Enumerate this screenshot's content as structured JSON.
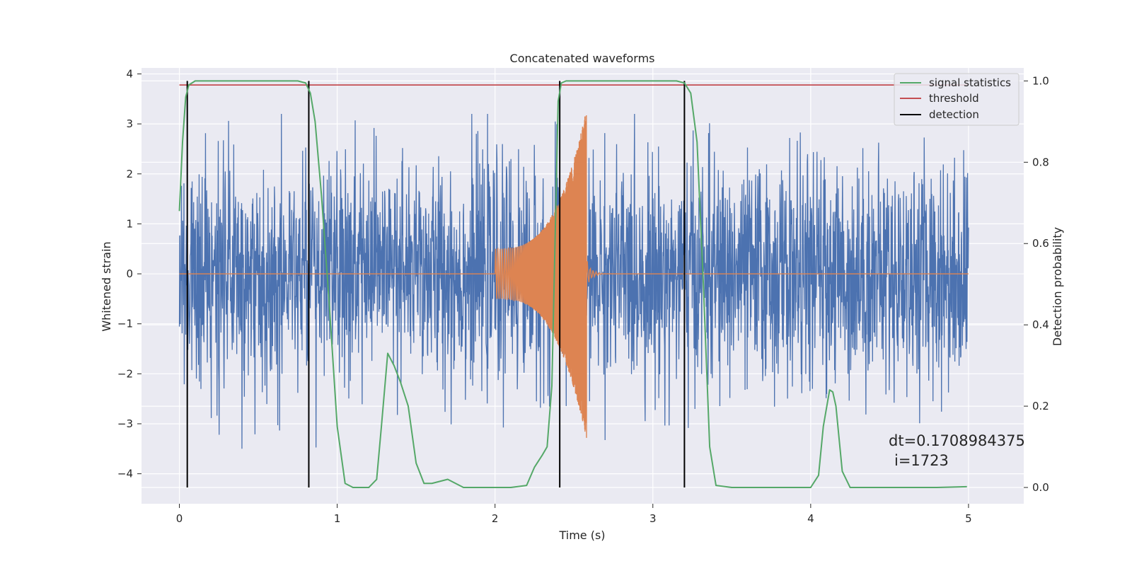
{
  "chart_data": {
    "type": "line",
    "title": "Concatenated waveforms",
    "xlabel": "Time (s)",
    "ylabel_left": "Whitened strain",
    "ylabel_right": "Detection probability",
    "xlim": [
      -0.24,
      5.35
    ],
    "ylim_left": [
      -4.6,
      4.12
    ],
    "ylim_right": [
      -0.04,
      1.032
    ],
    "x_ticks": [
      0,
      1,
      2,
      3,
      4,
      5
    ],
    "x_tick_labels": [
      "0",
      "1",
      "2",
      "3",
      "4",
      "5"
    ],
    "y_left_ticks": [
      -4,
      -3,
      -2,
      -1,
      0,
      1,
      2,
      3,
      4
    ],
    "y_left_tick_labels": [
      "−4",
      "−3",
      "−2",
      "−1",
      "0",
      "1",
      "2",
      "3",
      "4"
    ],
    "y_right_ticks": [
      0.0,
      0.2,
      0.4,
      0.6,
      0.8,
      1.0
    ],
    "y_right_tick_labels": [
      "0.0",
      "0.2",
      "0.4",
      "0.6",
      "0.8",
      "1.0"
    ],
    "grid": true,
    "legend_position": "top-right",
    "legend": [
      "signal statistics",
      "threshold",
      "detection"
    ],
    "series": [
      {
        "name": "whitened strain",
        "axis": "left",
        "color": "#4c72b0",
        "x_range": [
          0,
          5
        ],
        "noise_amplitude": 1.1,
        "peak_range": [
          -3.5,
          3.2
        ]
      },
      {
        "name": "injected waveform",
        "axis": "left",
        "color": "#dd8452",
        "chirp_start": 2.0,
        "chirp_end": 2.58,
        "amplitude_start": 0.5,
        "amplitude_end": 3.3
      },
      {
        "name": "signal statistics",
        "axis": "right",
        "color": "#55a868",
        "x": [
          0,
          0.02,
          0.04,
          0.06,
          0.1,
          0.2,
          0.4,
          0.6,
          0.75,
          0.8,
          0.83,
          0.86,
          0.9,
          0.95,
          1.0,
          1.05,
          1.1,
          1.2,
          1.25,
          1.28,
          1.32,
          1.36,
          1.4,
          1.45,
          1.5,
          1.55,
          1.6,
          1.65,
          1.7,
          1.75,
          1.8,
          2.0,
          2.1,
          2.2,
          2.25,
          2.3,
          2.33,
          2.36,
          2.38,
          2.4,
          2.42,
          2.45,
          2.6,
          2.8,
          3.0,
          3.15,
          3.2,
          3.24,
          3.28,
          3.32,
          3.36,
          3.4,
          3.5,
          3.7,
          4.0,
          4.05,
          4.08,
          4.12,
          4.14,
          4.16,
          4.18,
          4.2,
          4.25,
          4.4,
          4.8,
          4.99
        ],
        "y": [
          0.68,
          0.85,
          0.96,
          0.99,
          1.0,
          1.0,
          1.0,
          1.0,
          1.0,
          0.995,
          0.97,
          0.9,
          0.72,
          0.45,
          0.15,
          0.01,
          0.0,
          0.0,
          0.02,
          0.15,
          0.33,
          0.3,
          0.26,
          0.2,
          0.06,
          0.01,
          0.01,
          0.015,
          0.02,
          0.01,
          0.0,
          0.0,
          0.0,
          0.005,
          0.05,
          0.08,
          0.1,
          0.25,
          0.6,
          0.95,
          0.995,
          1.0,
          1.0,
          1.0,
          1.0,
          1.0,
          0.995,
          0.97,
          0.85,
          0.5,
          0.1,
          0.005,
          0.0,
          0.0,
          0.0,
          0.03,
          0.15,
          0.24,
          0.235,
          0.2,
          0.12,
          0.04,
          0.0,
          0.0,
          0.0,
          0.002
        ]
      },
      {
        "name": "threshold",
        "axis": "right",
        "color": "#c44e52",
        "x": [
          0,
          5
        ],
        "y": [
          0.99,
          0.99
        ]
      },
      {
        "name": "detection",
        "axis": "right",
        "color": "#000000",
        "x": [
          0.05,
          0.82,
          2.41,
          3.2
        ]
      }
    ],
    "annotation": {
      "line1": "dt=0.1708984375",
      "line2": "i=1723"
    }
  },
  "colors": {
    "plot_background": "#eaeaf2",
    "grid": "#ffffff",
    "strain": "#4c72b0",
    "waveform": "#dd8452",
    "signal_statistics": "#55a868",
    "threshold": "#c44e52",
    "detection": "#000000"
  }
}
